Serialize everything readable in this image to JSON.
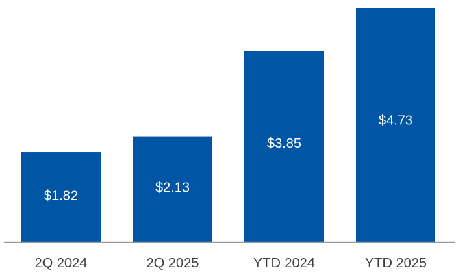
{
  "chart_data": {
    "type": "bar",
    "title": "",
    "xlabel": "",
    "ylabel": "",
    "categories": [
      "2Q 2024",
      "2Q 2025",
      "YTD 2024",
      "YTD 2025"
    ],
    "values": [
      1.82,
      2.13,
      3.85,
      4.73
    ],
    "value_labels": [
      "$1.82",
      "$2.13",
      "$3.85",
      "$4.73"
    ],
    "ylim": [
      0,
      4.8
    ],
    "grid": false,
    "legend": "none",
    "bar_color": "#0055A4",
    "axis_color": "#999999",
    "label_color": "#404040",
    "value_label_color": "#FFFFFF"
  }
}
